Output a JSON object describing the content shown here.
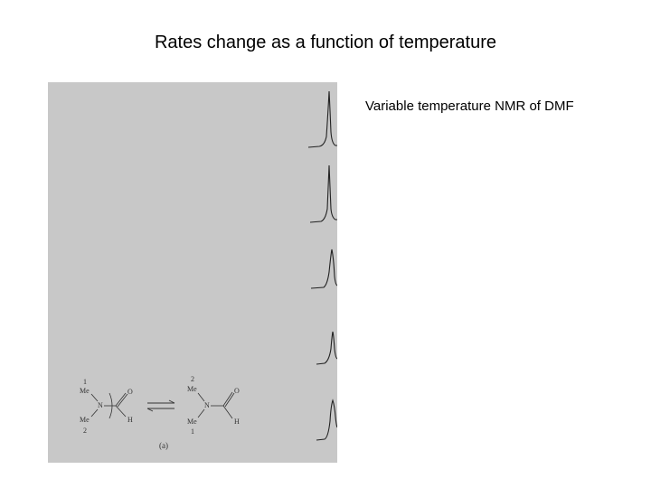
{
  "slide": {
    "title": "Rates change as a function of temperature",
    "caption": "Variable temperature NMR of DMF"
  },
  "figure": {
    "background_color": "#c8c8c8",
    "stroke_color": "#222222",
    "reaction_left": {
      "label_1": "1",
      "label_me_top": "Me",
      "label_n": "N",
      "label_me_bottom": "Me",
      "label_2": "2",
      "label_o": "O",
      "label_h": "H"
    },
    "reaction_right": {
      "label_2": "2",
      "label_me_top": "Me",
      "label_n": "N",
      "label_me_bottom": "Me",
      "label_1": "1",
      "label_o": "O",
      "label_h": "H"
    },
    "panel_label": "(a)"
  }
}
